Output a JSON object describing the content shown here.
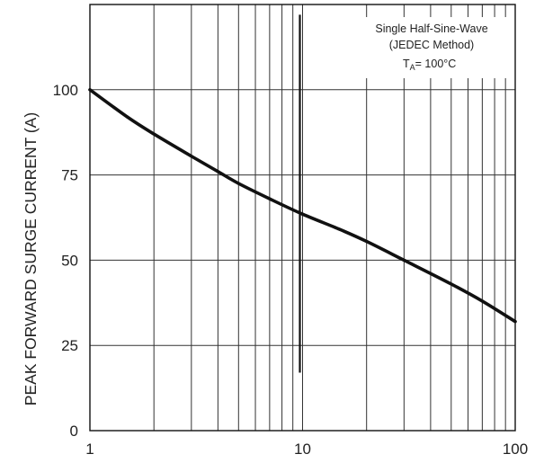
{
  "chart_data": {
    "type": "line",
    "x_scale": "log",
    "xlim": [
      1,
      100
    ],
    "ylim": [
      0,
      125
    ],
    "grid": true,
    "xlabel": "",
    "ylabel": "PEAK FORWARD SURGE CURRENT (A)",
    "x_ticks": [
      "1",
      "10",
      "100"
    ],
    "y_ticks": [
      "0",
      "25",
      "50",
      "75",
      "100"
    ],
    "annotation": {
      "line1": "Single Half-Sine-Wave",
      "line2": "(JEDEC Method)",
      "line3_main": "T",
      "line3_sub": "A",
      "line3_rest": "= 100°C"
    },
    "series": [
      {
        "x": [
          1,
          1.5,
          2,
          3,
          4,
          5,
          7,
          10,
          15,
          20,
          30,
          50,
          70,
          100
        ],
        "y": [
          100,
          92,
          87,
          80.5,
          76,
          72.5,
          68,
          63.5,
          59,
          55.5,
          50,
          43,
          38,
          32
        ]
      }
    ]
  }
}
